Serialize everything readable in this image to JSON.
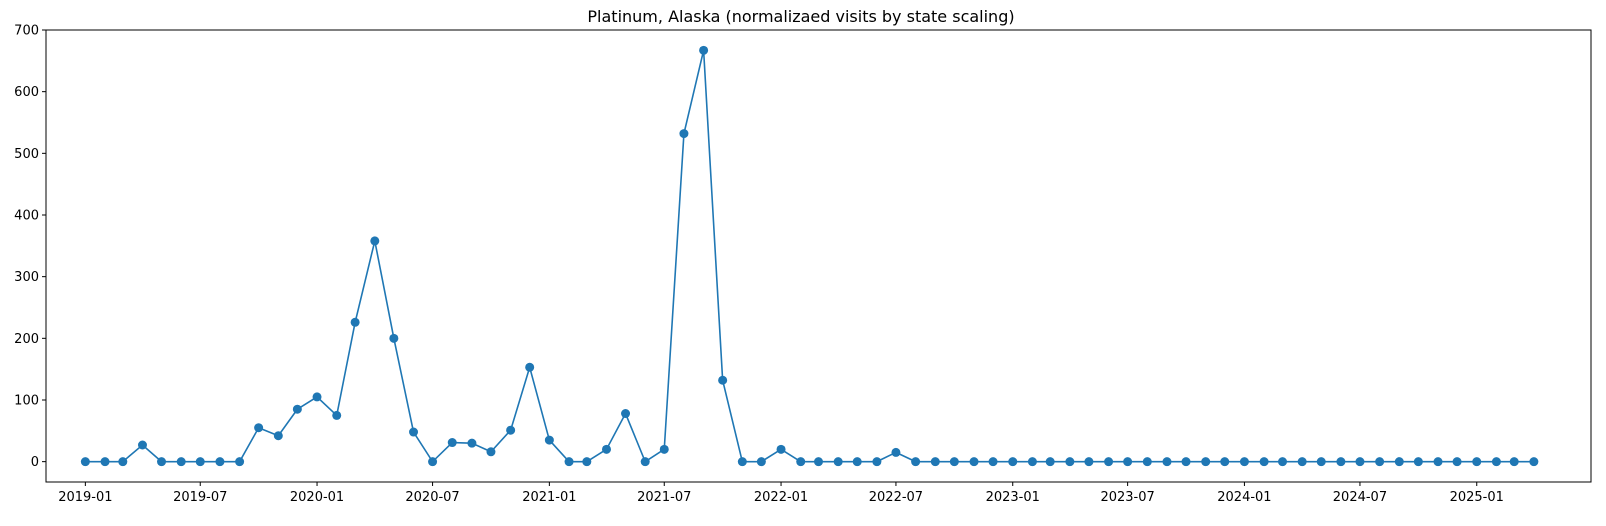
{
  "chart_data": {
    "type": "line",
    "title": "Platinum, Alaska (normalizaed visits by state scaling)",
    "xlabel": "",
    "ylabel": "",
    "ylim": [
      -33,
      700
    ],
    "xlim": [
      "2018-10-31",
      "2025-06-30"
    ],
    "grid": false,
    "color": "#1f77b4",
    "x_ticks": [
      "2019-01",
      "2019-07",
      "2020-01",
      "2020-07",
      "2021-01",
      "2021-07",
      "2022-01",
      "2022-07",
      "2023-01",
      "2023-07",
      "2024-01",
      "2024-07",
      "2025-01"
    ],
    "y_ticks": [
      0,
      100,
      200,
      300,
      400,
      500,
      600,
      700
    ],
    "series": [
      {
        "x": [
          "2019-01-01",
          "2019-02-01",
          "2019-03-01",
          "2019-04-01",
          "2019-05-01",
          "2019-06-01",
          "2019-07-01",
          "2019-08-01",
          "2019-09-01",
          "2019-10-01",
          "2019-11-01",
          "2019-12-01",
          "2020-01-01",
          "2020-02-01",
          "2020-03-01",
          "2020-04-01",
          "2020-05-01",
          "2020-06-01",
          "2020-07-01",
          "2020-08-01",
          "2020-09-01",
          "2020-10-01",
          "2020-11-01",
          "2020-12-01",
          "2021-01-01",
          "2021-02-01",
          "2021-03-01",
          "2021-04-01",
          "2021-05-01",
          "2021-06-01",
          "2021-07-01",
          "2021-08-01",
          "2021-09-01",
          "2021-10-01",
          "2021-11-01",
          "2021-12-01",
          "2022-01-01",
          "2022-02-01",
          "2022-03-01",
          "2022-04-01",
          "2022-05-01",
          "2022-06-01",
          "2022-07-01",
          "2022-08-01",
          "2022-09-01",
          "2022-10-01",
          "2022-11-01",
          "2022-12-01",
          "2023-01-01",
          "2023-02-01",
          "2023-03-01",
          "2023-04-01",
          "2023-05-01",
          "2023-06-01",
          "2023-07-01",
          "2023-08-01",
          "2023-09-01",
          "2023-10-01",
          "2023-11-01",
          "2023-12-01",
          "2024-01-01",
          "2024-02-01",
          "2024-03-01",
          "2024-04-01",
          "2024-05-01",
          "2024-06-01",
          "2024-07-01",
          "2024-08-01",
          "2024-09-01",
          "2024-10-01",
          "2024-11-01",
          "2024-12-01",
          "2025-01-01",
          "2025-02-01",
          "2025-03-01",
          "2025-04-01"
        ],
        "y": [
          0,
          0,
          0,
          27,
          0,
          0,
          0,
          0,
          0,
          55,
          42,
          85,
          105,
          75,
          226,
          358,
          200,
          48,
          0,
          31,
          30,
          16,
          51,
          153,
          35,
          0,
          0,
          20,
          78,
          0,
          20,
          532,
          667,
          132,
          0,
          0,
          20,
          0,
          0,
          0,
          0,
          0,
          15,
          0,
          0,
          0,
          0,
          0,
          0,
          0,
          0,
          0,
          0,
          0,
          0,
          0,
          0,
          0,
          0,
          0,
          0,
          0,
          0,
          0,
          0,
          0,
          0,
          0,
          0,
          0,
          0,
          0,
          0,
          0,
          0,
          0
        ]
      }
    ]
  }
}
